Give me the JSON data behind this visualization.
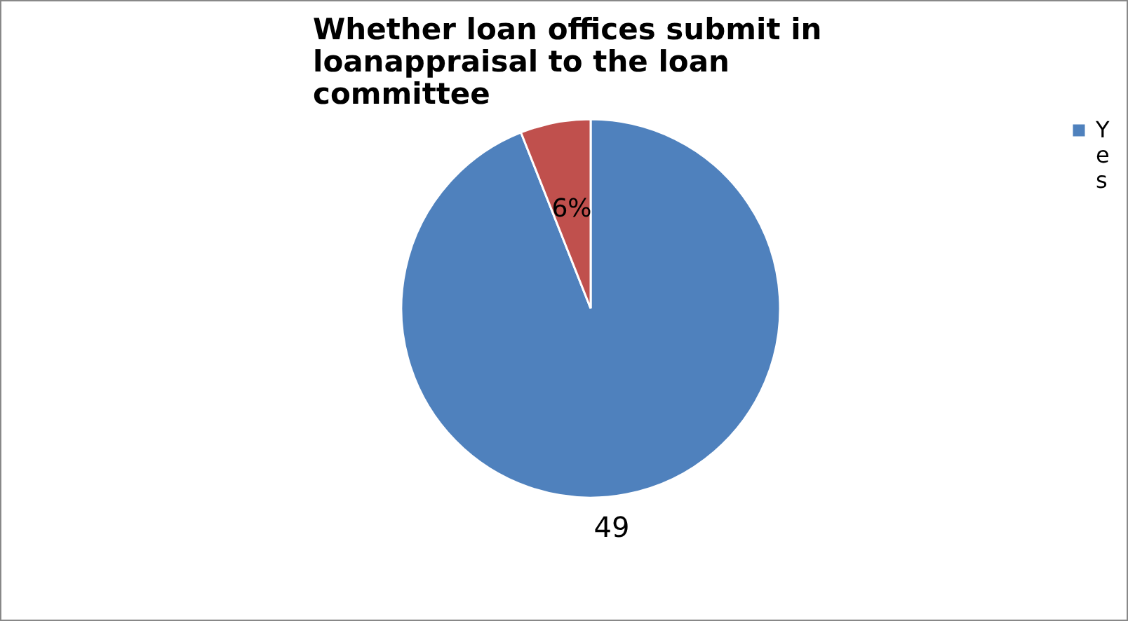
{
  "chart_data": {
    "type": "pie",
    "title": "Whether loan offices submit in loanappraisal to the loan committee",
    "categories": [
      "Yes",
      null
    ],
    "values": [
      94,
      6
    ],
    "colors": [
      "#4f81bd",
      "#c0504d"
    ],
    "value_labels": [
      null,
      "6%"
    ],
    "annotations": [
      "49"
    ],
    "legend": "right"
  }
}
